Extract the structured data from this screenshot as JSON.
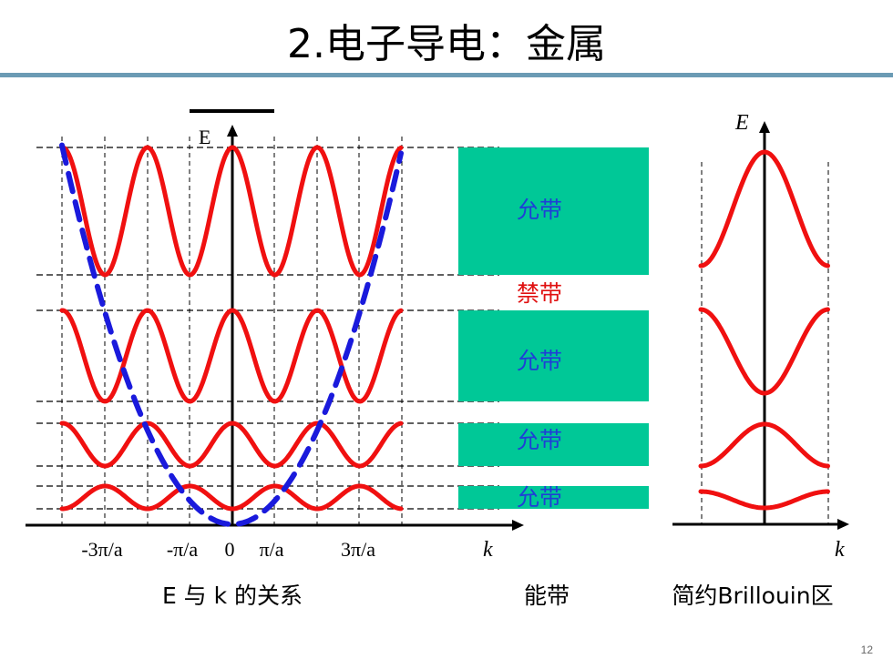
{
  "slide": {
    "title": "2.电子导电：金属",
    "page_number": "12"
  },
  "left_panel": {
    "axis_label_e": "E",
    "axis_label_k": "k",
    "tick_labels": [
      "-3π/a",
      "-π/a",
      "0",
      "π/a",
      "3π/a"
    ],
    "caption": "E 与 k 的关系"
  },
  "bands_panel": {
    "labels": [
      "允带",
      "禁带",
      "允带",
      "允带",
      "允带"
    ],
    "caption": "能带",
    "band_color": "#00c897",
    "allowed_label_color": "#1f3fd6",
    "forbidden_label_color": "#e01010"
  },
  "right_panel": {
    "axis_label_e": "E",
    "axis_label_k": "k",
    "caption": "简约Brillouin区"
  },
  "colors": {
    "curve": "#f01010",
    "free_electron": "#1a1adc"
  }
}
